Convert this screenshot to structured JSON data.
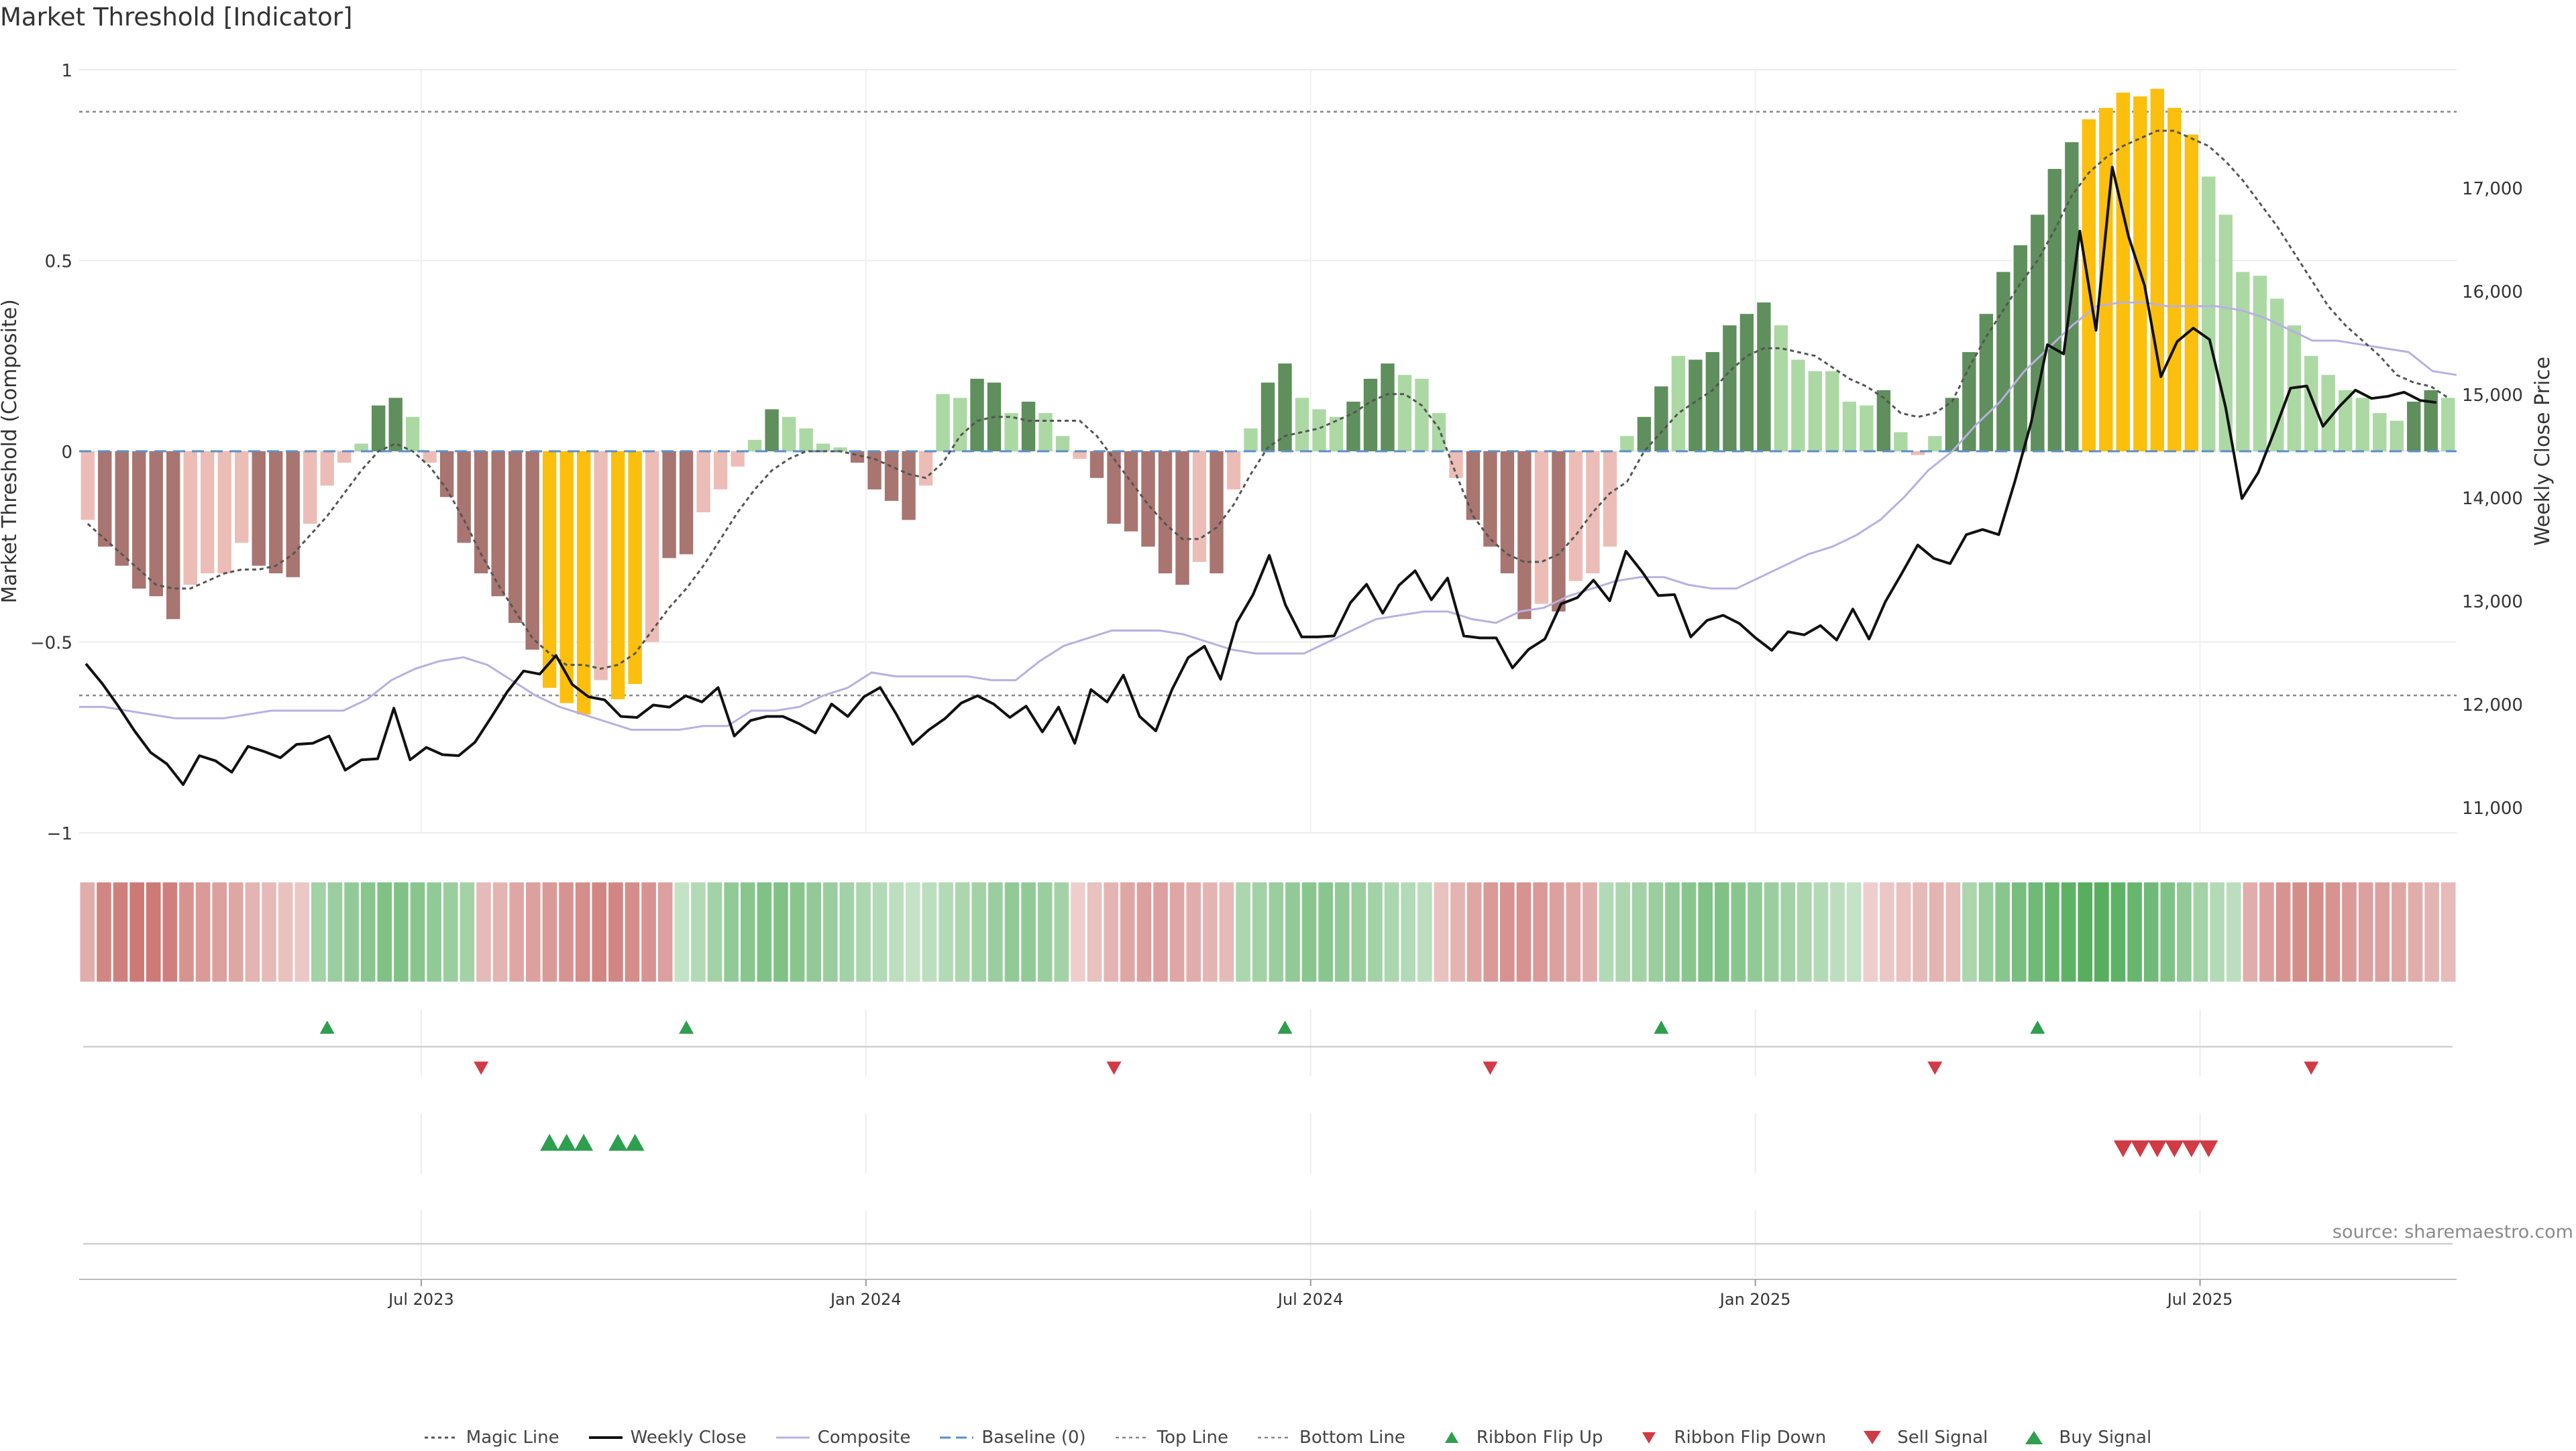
{
  "title": "Market Threshold [Indicator]",
  "source": "source: sharemaestro.com",
  "colors": {
    "dark_red": "#a87570",
    "light_red": "#ecbdb6",
    "dark_green": "#5f8f5c",
    "light_green": "#acd8a4",
    "gold": "#fcbf0d",
    "close_line": "#111111",
    "composite_line": "#b8b0e0",
    "magic_line": "#555555",
    "baseline": "#5b8fc7",
    "buy": "#2e9e4f",
    "sell": "#d13b45"
  },
  "legend": [
    {
      "label": "Magic Line",
      "key": "magic"
    },
    {
      "label": "Weekly Close",
      "key": "close"
    },
    {
      "label": "Composite",
      "key": "composite"
    },
    {
      "label": "Baseline (0)",
      "key": "baseline"
    },
    {
      "label": "Top Line",
      "key": "top"
    },
    {
      "label": "Bottom Line",
      "key": "bottom"
    },
    {
      "label": "Ribbon Flip Up",
      "key": "flip_up"
    },
    {
      "label": "Ribbon Flip Down",
      "key": "flip_down"
    },
    {
      "label": "Sell Signal",
      "key": "sell"
    },
    {
      "label": "Buy Signal",
      "key": "buy"
    }
  ],
  "chart_data": {
    "type": "bar",
    "title": "Market Threshold [Indicator]",
    "ylabel": "Market Threshold (Composite)",
    "y2label": "Weekly Close Price",
    "ylim": [
      -1,
      1
    ],
    "y2lim": [
      10800,
      17800
    ],
    "yticks": [
      "1",
      "0.5",
      "0",
      "−0.5",
      "−1"
    ],
    "ytick_values": [
      1,
      0.5,
      0,
      -0.5,
      -1
    ],
    "y2ticks": [
      "17,000",
      "16,000",
      "15,000",
      "14,000",
      "13,000",
      "12,000",
      "11,000"
    ],
    "y2tick_values": [
      17000,
      16000,
      15000,
      14000,
      13000,
      12000,
      11000
    ],
    "xticks": [
      "Jul 2023",
      "Jan 2024",
      "Jul 2024",
      "Jan 2025",
      "Jul 2025"
    ],
    "xtick_weeks": [
      20,
      46,
      72,
      98,
      124
    ],
    "top_line": 0.89,
    "bottom_line": -0.64,
    "baseline": 0,
    "grid": true,
    "legend_position": "bottom-center",
    "composite_bars": [
      -0.18,
      -0.25,
      -0.3,
      -0.36,
      -0.38,
      -0.44,
      -0.35,
      -0.32,
      -0.32,
      -0.24,
      -0.3,
      -0.32,
      -0.33,
      -0.19,
      -0.09,
      -0.03,
      0.02,
      0.12,
      0.14,
      0.09,
      -0.03,
      -0.12,
      -0.24,
      -0.32,
      -0.38,
      -0.45,
      -0.52,
      -0.62,
      -0.66,
      -0.69,
      -0.6,
      -0.65,
      -0.61,
      -0.5,
      -0.28,
      -0.27,
      -0.16,
      -0.1,
      -0.04,
      0.03,
      0.11,
      0.09,
      0.06,
      0.02,
      0.01,
      -0.03,
      -0.1,
      -0.13,
      -0.18,
      -0.09,
      0.15,
      0.14,
      0.19,
      0.18,
      0.1,
      0.13,
      0.1,
      0.04,
      -0.02,
      -0.07,
      -0.19,
      -0.21,
      -0.25,
      -0.32,
      -0.35,
      -0.29,
      -0.32,
      -0.1,
      0.06,
      0.18,
      0.23,
      0.14,
      0.11,
      0.09,
      0.13,
      0.19,
      0.23,
      0.2,
      0.19,
      0.1,
      -0.07,
      -0.18,
      -0.25,
      -0.32,
      -0.44,
      -0.4,
      -0.42,
      -0.34,
      -0.32,
      -0.25,
      0.04,
      0.09,
      0.17,
      0.25,
      0.24,
      0.26,
      0.33,
      0.36,
      0.39,
      0.33,
      0.24,
      0.21,
      0.21,
      0.13,
      0.12,
      0.16,
      0.05,
      -0.01,
      0.04,
      0.14,
      0.26,
      0.36,
      0.47,
      0.54,
      0.62,
      0.74,
      0.81,
      0.87,
      0.9,
      0.94,
      0.93,
      0.95,
      0.9,
      0.83,
      0.72,
      0.62,
      0.47,
      0.46,
      0.4,
      0.33,
      0.25,
      0.2,
      0.16,
      0.14,
      0.1,
      0.08,
      0.13,
      0.16,
      0.14
    ],
    "bar_categories": [
      "light_red",
      "dark_red",
      "dark_red",
      "dark_red",
      "dark_red",
      "dark_red",
      "light_red",
      "light_red",
      "light_red",
      "light_red",
      "dark_red",
      "dark_red",
      "dark_red",
      "light_red",
      "light_red",
      "light_red",
      "light_green",
      "dark_green",
      "dark_green",
      "light_green",
      "light_red",
      "dark_red",
      "dark_red",
      "dark_red",
      "dark_red",
      "dark_red",
      "dark_red",
      "gold",
      "gold",
      "gold",
      "light_red",
      "gold",
      "gold",
      "light_red",
      "dark_red",
      "dark_red",
      "light_red",
      "light_red",
      "light_red",
      "light_green",
      "dark_green",
      "light_green",
      "light_green",
      "light_green",
      "light_green",
      "dark_red",
      "dark_red",
      "dark_red",
      "dark_red",
      "light_red",
      "light_green",
      "light_green",
      "dark_green",
      "dark_green",
      "light_green",
      "dark_green",
      "light_green",
      "light_green",
      "light_red",
      "dark_red",
      "dark_red",
      "dark_red",
      "dark_red",
      "dark_red",
      "dark_red",
      "light_red",
      "dark_red",
      "light_red",
      "light_green",
      "dark_green",
      "dark_green",
      "light_green",
      "light_green",
      "light_green",
      "dark_green",
      "dark_green",
      "dark_green",
      "light_green",
      "light_green",
      "light_green",
      "light_red",
      "dark_red",
      "dark_red",
      "dark_red",
      "dark_red",
      "light_red",
      "dark_red",
      "light_red",
      "light_red",
      "light_red",
      "light_green",
      "dark_green",
      "dark_green",
      "light_green",
      "dark_green",
      "dark_green",
      "dark_green",
      "dark_green",
      "dark_green",
      "light_green",
      "light_green",
      "light_green",
      "light_green",
      "light_green",
      "light_green",
      "dark_green",
      "light_green",
      "light_red",
      "light_green",
      "dark_green",
      "dark_green",
      "dark_green",
      "dark_green",
      "dark_green",
      "dark_green",
      "dark_green",
      "dark_green",
      "gold",
      "gold",
      "gold",
      "gold",
      "gold",
      "gold",
      "gold",
      "light_green",
      "light_green",
      "light_green",
      "light_green",
      "light_green",
      "light_green",
      "light_green",
      "light_green",
      "light_green",
      "light_green",
      "light_green",
      "light_green",
      "dark_green",
      "dark_green",
      "light_green"
    ],
    "magic_line": [
      -0.19,
      -0.23,
      -0.27,
      -0.31,
      -0.35,
      -0.36,
      -0.36,
      -0.34,
      -0.32,
      -0.31,
      -0.31,
      -0.3,
      -0.27,
      -0.22,
      -0.17,
      -0.11,
      -0.05,
      0.0,
      0.02,
      0.0,
      -0.04,
      -0.1,
      -0.18,
      -0.27,
      -0.35,
      -0.42,
      -0.49,
      -0.53,
      -0.56,
      -0.56,
      -0.57,
      -0.56,
      -0.53,
      -0.47,
      -0.41,
      -0.36,
      -0.3,
      -0.23,
      -0.16,
      -0.1,
      -0.05,
      -0.02,
      0.0,
      0.0,
      0.0,
      -0.01,
      -0.02,
      -0.04,
      -0.06,
      -0.07,
      -0.03,
      0.04,
      0.08,
      0.09,
      0.09,
      0.08,
      0.08,
      0.08,
      0.08,
      0.04,
      -0.02,
      -0.08,
      -0.14,
      -0.19,
      -0.23,
      -0.23,
      -0.2,
      -0.14,
      -0.06,
      0.01,
      0.04,
      0.05,
      0.06,
      0.08,
      0.1,
      0.13,
      0.15,
      0.15,
      0.12,
      0.06,
      -0.06,
      -0.17,
      -0.23,
      -0.27,
      -0.29,
      -0.29,
      -0.27,
      -0.22,
      -0.16,
      -0.11,
      -0.08,
      0.0,
      0.05,
      0.1,
      0.13,
      0.16,
      0.21,
      0.25,
      0.27,
      0.27,
      0.26,
      0.25,
      0.22,
      0.19,
      0.17,
      0.14,
      0.1,
      0.09,
      0.1,
      0.13,
      0.22,
      0.3,
      0.37,
      0.44,
      0.5,
      0.58,
      0.67,
      0.73,
      0.77,
      0.8,
      0.82,
      0.84,
      0.84,
      0.82,
      0.8,
      0.76,
      0.71,
      0.65,
      0.59,
      0.52,
      0.45,
      0.38,
      0.33,
      0.29,
      0.25,
      0.2,
      0.18,
      0.17,
      0.14
    ],
    "composite_line": [
      -0.67,
      -0.67,
      -0.68,
      -0.69,
      -0.7,
      -0.7,
      -0.7,
      -0.69,
      -0.68,
      -0.68,
      -0.68,
      -0.68,
      -0.65,
      -0.6,
      -0.57,
      -0.55,
      -0.54,
      -0.56,
      -0.6,
      -0.64,
      -0.67,
      -0.69,
      -0.71,
      -0.73,
      -0.73,
      -0.73,
      -0.72,
      -0.72,
      -0.68,
      -0.68,
      -0.67,
      -0.64,
      -0.62,
      -0.58,
      -0.59,
      -0.59,
      -0.59,
      -0.59,
      -0.6,
      -0.6,
      -0.55,
      -0.51,
      -0.49,
      -0.47,
      -0.47,
      -0.47,
      -0.48,
      -0.5,
      -0.52,
      -0.53,
      -0.53,
      -0.53,
      -0.5,
      -0.47,
      -0.44,
      -0.43,
      -0.42,
      -0.42,
      -0.44,
      -0.45,
      -0.42,
      -0.41,
      -0.38,
      -0.36,
      -0.34,
      -0.33,
      -0.33,
      -0.35,
      -0.36,
      -0.36,
      -0.33,
      -0.3,
      -0.27,
      -0.25,
      -0.22,
      -0.18,
      -0.12,
      -0.05,
      0.0,
      0.07,
      0.13,
      0.21,
      0.27,
      0.33,
      0.38,
      0.39,
      0.39,
      0.38,
      0.38,
      0.38,
      0.37,
      0.35,
      0.32,
      0.29,
      0.29,
      0.28,
      0.27,
      0.26,
      0.21,
      0.2
    ],
    "composite_line_start_week": 0,
    "weekly_close": [
      12390,
      12200,
      11980,
      11740,
      11530,
      11420,
      11220,
      11500,
      11450,
      11340,
      11590,
      11540,
      11480,
      11610,
      11620,
      11690,
      11360,
      11460,
      11470,
      11960,
      11460,
      11580,
      11510,
      11500,
      11630,
      11870,
      12120,
      12320,
      12290,
      12470,
      12190,
      12070,
      12040,
      11880,
      11870,
      11990,
      11970,
      12080,
      12020,
      12160,
      11690,
      11840,
      11880,
      11880,
      11810,
      11720,
      12000,
      11880,
      12070,
      12160,
      11900,
      11610,
      11750,
      11860,
      12010,
      12080,
      12000,
      11870,
      11980,
      11730,
      11970,
      11620,
      12140,
      12020,
      12280,
      11880,
      11740,
      12140,
      12450,
      12560,
      12240,
      12790,
      13060,
      13440,
      12960,
      12650,
      12650,
      12660,
      12980,
      13160,
      12880,
      13150,
      13290,
      13010,
      13220,
      12660,
      12640,
      12640,
      12350,
      12530,
      12630,
      12970,
      13030,
      13200,
      13000,
      13480,
      13280,
      13050,
      13060,
      12650,
      12810,
      12860,
      12780,
      12640,
      12520,
      12700,
      12670,
      12760,
      12620,
      12920,
      12630,
      12990,
      13260,
      13540,
      13410,
      13360,
      13640,
      13690,
      13640,
      14160,
      14730,
      15480,
      15390,
      16580,
      15620,
      17200,
      16530,
      16050,
      15170,
      15510,
      15640,
      15530,
      14870,
      13990,
      14240,
      14640,
      15060,
      15080,
      14690,
      14880,
      15040,
      14960,
      14980,
      15020,
      14940,
      14920
    ],
    "ribbon_levels": [
      -0.4,
      -0.7,
      -0.75,
      -0.8,
      -0.8,
      -0.75,
      -0.6,
      -0.55,
      -0.5,
      -0.45,
      -0.35,
      -0.3,
      -0.25,
      -0.2,
      0.4,
      0.45,
      0.5,
      0.55,
      0.6,
      0.6,
      0.55,
      0.5,
      0.45,
      0.4,
      -0.3,
      -0.35,
      -0.45,
      -0.5,
      -0.55,
      -0.6,
      -0.65,
      -0.7,
      -0.7,
      -0.65,
      -0.6,
      -0.5,
      0.2,
      0.3,
      0.4,
      0.5,
      0.55,
      0.6,
      0.6,
      0.55,
      0.5,
      0.45,
      0.4,
      0.35,
      0.3,
      0.25,
      0.2,
      0.25,
      0.3,
      0.35,
      0.4,
      0.45,
      0.5,
      0.5,
      0.45,
      0.4,
      -0.15,
      -0.25,
      -0.35,
      -0.45,
      -0.5,
      -0.5,
      -0.45,
      -0.4,
      -0.35,
      -0.3,
      0.35,
      0.4,
      0.45,
      0.5,
      0.55,
      0.55,
      0.5,
      0.45,
      0.4,
      0.35,
      0.3,
      0.25,
      -0.25,
      -0.35,
      -0.45,
      -0.55,
      -0.6,
      -0.6,
      -0.55,
      -0.5,
      -0.45,
      -0.4,
      0.3,
      0.35,
      0.4,
      0.45,
      0.5,
      0.55,
      0.6,
      0.6,
      0.55,
      0.5,
      0.45,
      0.4,
      0.35,
      0.3,
      0.25,
      0.2,
      -0.15,
      -0.2,
      -0.25,
      -0.3,
      -0.35,
      -0.3,
      0.35,
      0.45,
      0.55,
      0.65,
      0.7,
      0.75,
      0.8,
      0.85,
      0.85,
      0.8,
      0.75,
      0.7,
      0.6,
      0.5,
      0.4,
      0.3,
      0.25,
      -0.4,
      -0.5,
      -0.6,
      -0.65,
      -0.65,
      -0.6,
      -0.55,
      -0.5,
      -0.5,
      -0.45,
      -0.4,
      -0.35,
      -0.3
    ],
    "ribbon_flip_up_weeks": [
      14,
      35,
      70,
      92,
      114
    ],
    "ribbon_flip_down_weeks": [
      23,
      60,
      82,
      108,
      130
    ],
    "buy_signal_weeks": [
      27,
      28,
      29,
      31,
      32
    ],
    "sell_signal_weeks": [
      119,
      120,
      121,
      122,
      123,
      124
    ]
  }
}
